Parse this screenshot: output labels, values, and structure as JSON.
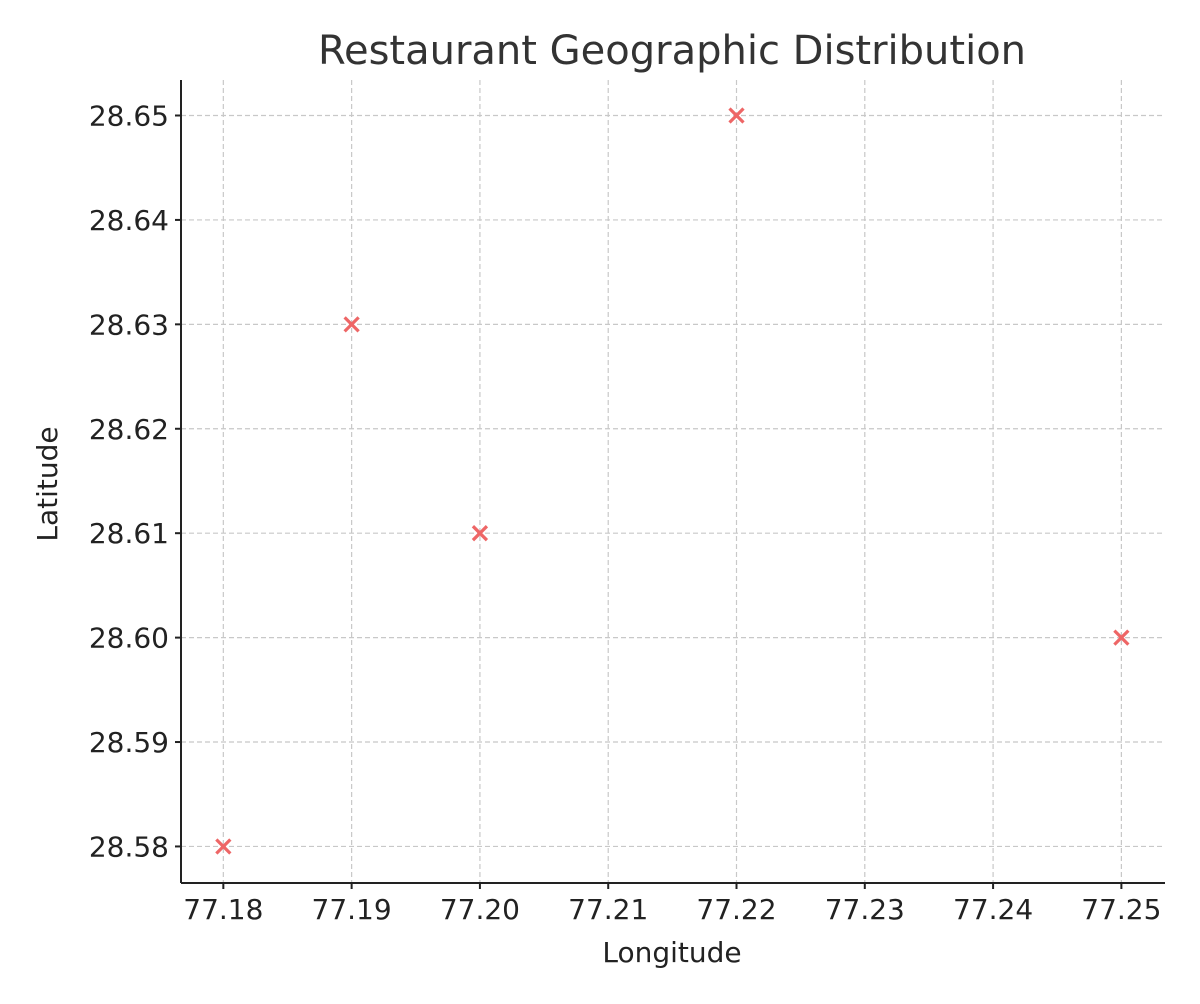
{
  "chart_data": {
    "type": "scatter",
    "title": "Restaurant Geographic Distribution",
    "xlabel": "Longitude",
    "ylabel": "Latitude",
    "xlim": [
      77.1767,
      77.2534
    ],
    "ylim": [
      28.5765,
      28.6534
    ],
    "x_ticks": [
      77.18,
      77.19,
      77.2,
      77.21,
      77.22,
      77.23,
      77.24,
      77.25
    ],
    "x_tick_labels": [
      "77.18",
      "77.19",
      "77.20",
      "77.21",
      "77.22",
      "77.23",
      "77.24",
      "77.25"
    ],
    "y_ticks": [
      28.58,
      28.59,
      28.6,
      28.61,
      28.62,
      28.63,
      28.64,
      28.65
    ],
    "y_tick_labels": [
      "28.58",
      "28.59",
      "28.60",
      "28.61",
      "28.62",
      "28.63",
      "28.64",
      "28.65"
    ],
    "grid": true,
    "marker": "x",
    "marker_color": "#ee6666",
    "points": [
      {
        "x": 77.18,
        "y": 28.58
      },
      {
        "x": 77.19,
        "y": 28.63
      },
      {
        "x": 77.2,
        "y": 28.61
      },
      {
        "x": 77.22,
        "y": 28.65
      },
      {
        "x": 77.25,
        "y": 28.6
      }
    ]
  }
}
